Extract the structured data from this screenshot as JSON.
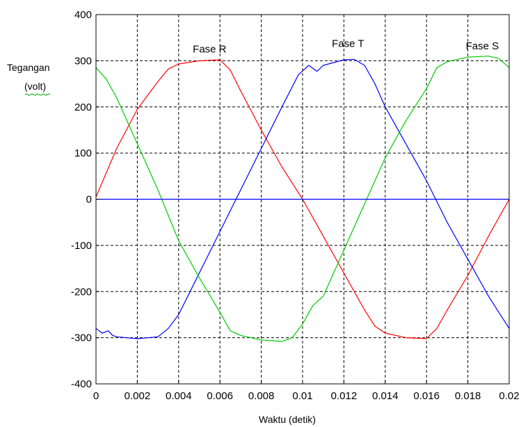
{
  "chart_data": {
    "type": "line",
    "title": "",
    "xlabel": "Waktu (detik)",
    "ylabel_lines": [
      "Tegangan",
      "(volt)"
    ],
    "xlim": [
      0,
      0.02
    ],
    "ylim": [
      -400,
      400
    ],
    "x_ticks": [
      0,
      0.002,
      0.004,
      0.006,
      0.008,
      0.01,
      0.012,
      0.014,
      0.016,
      0.018,
      0.02
    ],
    "x_tick_labels": [
      "0",
      "0.002",
      "0.004",
      "0.006",
      "0.008",
      "0.01",
      "0.012",
      "0.014",
      "0.016",
      "0.018",
      "0.02"
    ],
    "y_ticks": [
      -400,
      -300,
      -200,
      -100,
      0,
      100,
      200,
      300,
      400
    ],
    "y_tick_labels": [
      "-400",
      "-300",
      "-200",
      "-100",
      "0",
      "100",
      "200",
      "300",
      "400"
    ],
    "grid": true,
    "grid_style": "dashed",
    "series": [
      {
        "color": "#ff0000",
        "points": [
          [
            0,
            5
          ],
          [
            0.001,
            110
          ],
          [
            0.002,
            195
          ],
          [
            0.003,
            255
          ],
          [
            0.0035,
            282
          ],
          [
            0.004,
            293
          ],
          [
            0.005,
            300
          ],
          [
            0.006,
            302
          ],
          [
            0.0065,
            280
          ],
          [
            0.007,
            235
          ],
          [
            0.008,
            150
          ],
          [
            0.009,
            70
          ],
          [
            0.01,
            0
          ],
          [
            0.011,
            -80
          ],
          [
            0.012,
            -160
          ],
          [
            0.013,
            -240
          ],
          [
            0.0135,
            -275
          ],
          [
            0.014,
            -290
          ],
          [
            0.015,
            -300
          ],
          [
            0.016,
            -302
          ],
          [
            0.0165,
            -280
          ],
          [
            0.017,
            -240
          ],
          [
            0.018,
            -165
          ],
          [
            0.019,
            -80
          ],
          [
            0.02,
            0
          ]
        ]
      },
      {
        "color": "#0000ff",
        "points": [
          [
            0,
            -280
          ],
          [
            0.0003,
            -290
          ],
          [
            0.0006,
            -285
          ],
          [
            0.0008,
            -295
          ],
          [
            0.001,
            -298
          ],
          [
            0.002,
            -302
          ],
          [
            0.003,
            -298
          ],
          [
            0.0035,
            -280
          ],
          [
            0.004,
            -250
          ],
          [
            0.005,
            -160
          ],
          [
            0.006,
            -70
          ],
          [
            0.007,
            20
          ],
          [
            0.008,
            110
          ],
          [
            0.009,
            200
          ],
          [
            0.0098,
            270
          ],
          [
            0.0103,
            290
          ],
          [
            0.0107,
            277
          ],
          [
            0.011,
            290
          ],
          [
            0.012,
            302
          ],
          [
            0.0125,
            303
          ],
          [
            0.013,
            290
          ],
          [
            0.0135,
            250
          ],
          [
            0.014,
            200
          ],
          [
            0.015,
            120
          ],
          [
            0.016,
            40
          ],
          [
            0.017,
            -50
          ],
          [
            0.018,
            -130
          ],
          [
            0.019,
            -210
          ],
          [
            0.02,
            -280
          ]
        ]
      },
      {
        "color": "#00cc00",
        "points": [
          [
            0,
            285
          ],
          [
            0.0005,
            260
          ],
          [
            0.001,
            220
          ],
          [
            0.002,
            120
          ],
          [
            0.003,
            20
          ],
          [
            0.004,
            -90
          ],
          [
            0.005,
            -170
          ],
          [
            0.006,
            -245
          ],
          [
            0.0065,
            -285
          ],
          [
            0.007,
            -295
          ],
          [
            0.008,
            -305
          ],
          [
            0.009,
            -308
          ],
          [
            0.0095,
            -300
          ],
          [
            0.01,
            -270
          ],
          [
            0.0105,
            -230
          ],
          [
            0.011,
            -210
          ],
          [
            0.012,
            -110
          ],
          [
            0.013,
            -10
          ],
          [
            0.014,
            90
          ],
          [
            0.015,
            170
          ],
          [
            0.016,
            240
          ],
          [
            0.0165,
            285
          ],
          [
            0.017,
            298
          ],
          [
            0.018,
            308
          ],
          [
            0.019,
            310
          ],
          [
            0.0195,
            305
          ],
          [
            0.02,
            285
          ]
        ]
      },
      {
        "color": "#0000ff",
        "points": [
          [
            0,
            0
          ],
          [
            0.02,
            0
          ]
        ]
      }
    ],
    "annotations": [
      {
        "text": "Fase R",
        "x": 0.0055,
        "y": 318
      },
      {
        "text": "Fase T",
        "x": 0.0122,
        "y": 330
      },
      {
        "text": "Fase S",
        "x": 0.0187,
        "y": 325
      }
    ]
  }
}
